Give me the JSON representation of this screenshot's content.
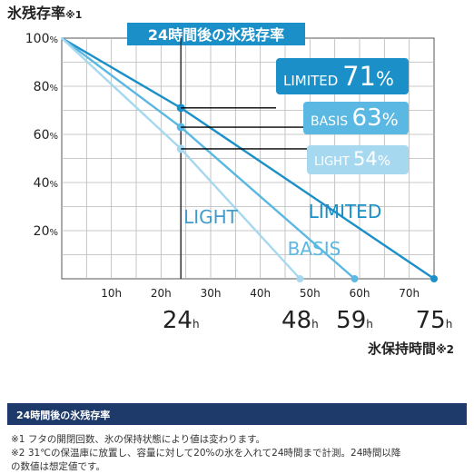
{
  "chart_data": {
    "type": "line",
    "title": "24時間後の氷残存率",
    "ylabel_main": "氷残存率",
    "ylabel_note": "※1",
    "xlabel_main": "氷保持時間",
    "xlabel_note": "※2",
    "xlim": [
      0,
      75
    ],
    "ylim": [
      0,
      100
    ],
    "x_ticks": [
      {
        "value": 10,
        "label": "10h"
      },
      {
        "value": 20,
        "label": "20h"
      },
      {
        "value": 30,
        "label": "30h"
      },
      {
        "value": 40,
        "label": "40h"
      },
      {
        "value": 50,
        "label": "50h"
      },
      {
        "value": 60,
        "label": "60h"
      },
      {
        "value": 70,
        "label": "70h"
      }
    ],
    "y_ticks": [
      {
        "value": 100,
        "num": "100",
        "unit": "%"
      },
      {
        "value": 80,
        "num": "80",
        "unit": "%"
      },
      {
        "value": 60,
        "num": "60",
        "unit": "%"
      },
      {
        "value": 40,
        "num": "40",
        "unit": "%"
      },
      {
        "value": 20,
        "num": "20",
        "unit": "%"
      }
    ],
    "marker_x": {
      "value": 24,
      "num": "24",
      "unit": "h"
    },
    "series": [
      {
        "name": "LIMITED",
        "color": "#1a8fc8",
        "points": [
          [
            0,
            100
          ],
          [
            24,
            71
          ],
          [
            75,
            0
          ]
        ],
        "end_label": {
          "num": "75",
          "unit": "h"
        },
        "callout": {
          "name": "LIMITED",
          "value": "71",
          "unit": "%",
          "bg": "#1a8fc8"
        }
      },
      {
        "name": "BASIS",
        "color": "#5ab8e2",
        "points": [
          [
            0,
            100
          ],
          [
            24,
            63
          ],
          [
            59,
            0
          ]
        ],
        "end_label": {
          "num": "59",
          "unit": "h"
        },
        "callout": {
          "name": "BASIS",
          "value": "63",
          "unit": "%",
          "bg": "#5ab8e2"
        }
      },
      {
        "name": "LIGHT",
        "color": "#a6d8ef",
        "points": [
          [
            0,
            100
          ],
          [
            24,
            54
          ],
          [
            48,
            0
          ]
        ],
        "end_label": {
          "num": "48",
          "unit": "h"
        },
        "callout": {
          "name": "LIGHT",
          "value": "54",
          "unit": "%",
          "bg": "#a6d8ef"
        }
      }
    ],
    "line_labels": [
      "LIGHT",
      "LIMITED",
      "BASIS"
    ],
    "grid": true
  },
  "footer": {
    "title": "24時間後の氷残存率",
    "note1": "※1 フタの開閉回数、氷の保持状態により値は変わります。",
    "note2": "※2 31℃の保温庫に放置し、容量に対して20%の氷を入れて24時間まで計測。24時間以降",
    "note3": "の数値は想定値です。"
  },
  "colors": {
    "grid": "#b8b8b8",
    "axis": "#555555",
    "title_box": "#1a8fc8",
    "footer_bar": "#1e3a6b",
    "guide": "#000000"
  }
}
